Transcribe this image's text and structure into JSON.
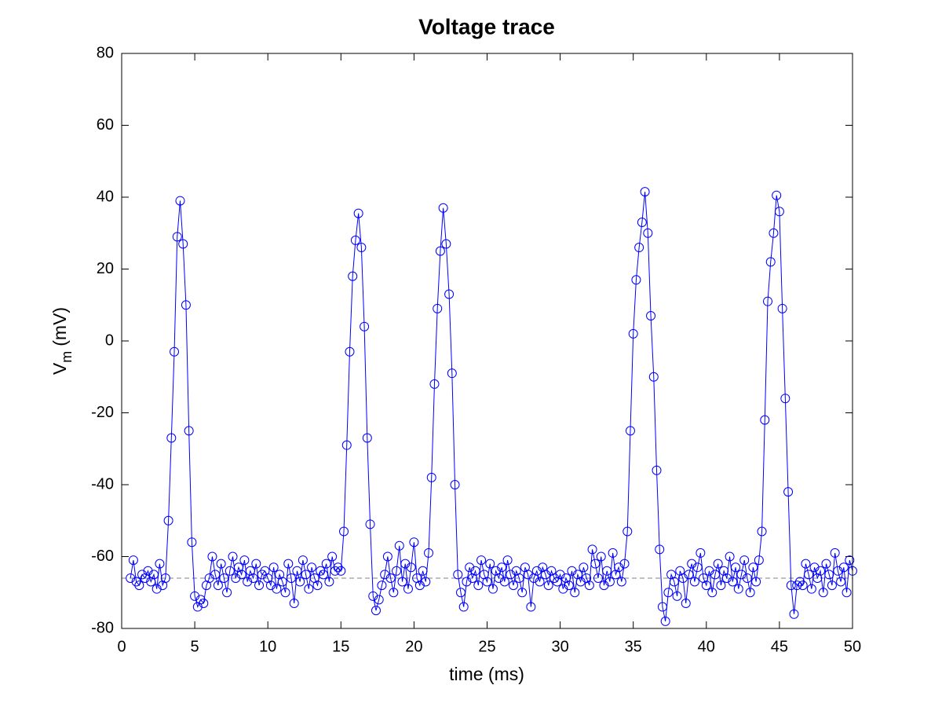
{
  "chart_data": {
    "type": "line",
    "title": "Voltage trace",
    "xlabel": "time (ms)",
    "ylabel": {
      "base": "V",
      "sub": "m",
      "rest": "(mV)"
    },
    "xlim": [
      0,
      50
    ],
    "xticks": [
      0,
      5,
      10,
      15,
      20,
      25,
      30,
      35,
      40,
      45,
      50
    ],
    "ylim": [
      -80,
      80
    ],
    "yticks": [
      -80,
      -60,
      -40,
      -20,
      0,
      20,
      40,
      60,
      80
    ],
    "grid": false,
    "marker": "circle",
    "reference_line": {
      "y": -66,
      "color": "#808080"
    },
    "x": [
      0.6,
      0.8,
      1,
      1.2,
      1.4,
      1.6,
      1.8,
      2,
      2.2,
      2.4,
      2.6,
      2.8,
      3,
      3.2,
      3.4,
      3.6,
      3.8,
      4,
      4.2,
      4.4,
      4.6,
      4.8,
      5,
      5.2,
      5.4,
      5.6,
      5.8,
      6,
      6.2,
      6.4,
      6.6,
      6.8,
      7,
      7.2,
      7.4,
      7.6,
      7.8,
      8,
      8.2,
      8.4,
      8.6,
      8.8,
      9,
      9.2,
      9.4,
      9.6,
      9.8,
      10,
      10.2,
      10.4,
      10.6,
      10.8,
      11,
      11.2,
      11.4,
      11.6,
      11.8,
      12,
      12.2,
      12.4,
      12.6,
      12.8,
      13,
      13.2,
      13.4,
      13.6,
      13.8,
      14,
      14.2,
      14.4,
      14.6,
      14.8,
      15,
      15.2,
      15.4,
      15.6,
      15.8,
      16,
      16.2,
      16.4,
      16.6,
      16.8,
      17,
      17.2,
      17.4,
      17.6,
      17.8,
      18,
      18.2,
      18.4,
      18.6,
      18.8,
      19,
      19.2,
      19.4,
      19.6,
      19.8,
      20,
      20.2,
      20.4,
      20.6,
      20.8,
      21,
      21.2,
      21.4,
      21.6,
      21.8,
      22,
      22.2,
      22.4,
      22.6,
      22.8,
      23,
      23.2,
      23.4,
      23.6,
      23.8,
      24,
      24.2,
      24.4,
      24.6,
      24.8,
      25,
      25.2,
      25.4,
      25.6,
      25.8,
      26,
      26.2,
      26.4,
      26.6,
      26.8,
      27,
      27.2,
      27.4,
      27.6,
      27.8,
      28,
      28.2,
      28.4,
      28.6,
      28.8,
      29,
      29.2,
      29.4,
      29.6,
      29.8,
      30,
      30.2,
      30.4,
      30.6,
      30.8,
      31,
      31.2,
      31.4,
      31.6,
      31.8,
      32,
      32.2,
      32.4,
      32.6,
      32.8,
      33,
      33.2,
      33.4,
      33.6,
      33.8,
      34,
      34.2,
      34.4,
      34.6,
      34.8,
      35,
      35.2,
      35.4,
      35.6,
      35.8,
      36,
      36.2,
      36.4,
      36.6,
      36.8,
      37,
      37.2,
      37.4,
      37.6,
      37.8,
      38,
      38.2,
      38.4,
      38.6,
      38.8,
      39,
      39.2,
      39.4,
      39.6,
      39.8,
      40,
      40.2,
      40.4,
      40.6,
      40.8,
      41,
      41.2,
      41.4,
      41.6,
      41.8,
      42,
      42.2,
      42.4,
      42.6,
      42.8,
      43,
      43.2,
      43.4,
      43.6,
      43.8,
      44,
      44.2,
      44.4,
      44.6,
      44.8,
      45,
      45.2,
      45.4,
      45.6,
      45.8,
      46,
      46.2,
      46.4,
      46.6,
      46.8,
      47,
      47.2,
      47.4,
      47.6,
      47.8,
      48,
      48.2,
      48.4,
      48.6,
      48.8,
      49,
      49.2,
      49.4,
      49.6,
      49.8,
      50
    ],
    "series": [
      {
        "color": "#0000ff",
        "values": [
          -66,
          -61,
          -67,
          -68,
          -65,
          -66,
          -64,
          -67,
          -65,
          -69,
          -62,
          -68,
          -66,
          -50,
          -27,
          -3,
          29,
          39,
          27,
          10,
          -25,
          -56,
          -71,
          -74,
          -72,
          -73,
          -68,
          -66,
          -60,
          -65,
          -68,
          -62,
          -66,
          -70,
          -64,
          -60,
          -66,
          -63,
          -65,
          -61,
          -67,
          -64,
          -66,
          -62,
          -68,
          -65,
          -64,
          -66,
          -68,
          -63,
          -69,
          -65,
          -67,
          -70,
          -62,
          -66,
          -73,
          -64,
          -67,
          -61,
          -65,
          -69,
          -63,
          -66,
          -68,
          -64,
          -65,
          -62,
          -67,
          -60,
          -64,
          -63,
          -64,
          -53,
          -29,
          -3,
          18,
          28,
          35.5,
          26,
          4,
          -27,
          -51,
          -71,
          -75,
          -72,
          -68,
          -65,
          -60,
          -66,
          -70,
          -64,
          -57,
          -67,
          -62,
          -69,
          -63,
          -56,
          -66,
          -68,
          -64,
          -67,
          -59,
          -38,
          -12,
          9,
          25,
          37,
          27,
          13,
          -9,
          -40,
          -65,
          -70,
          -74,
          -67,
          -63,
          -66,
          -64,
          -68,
          -61,
          -65,
          -67,
          -62,
          -69,
          -64,
          -66,
          -63,
          -67,
          -61,
          -65,
          -68,
          -64,
          -66,
          -70,
          -63,
          -65,
          -74,
          -66,
          -64,
          -67,
          -63,
          -65,
          -68,
          -64,
          -66,
          -67,
          -65,
          -69,
          -66,
          -68,
          -64,
          -70,
          -65,
          -67,
          -63,
          -66,
          -68,
          -58,
          -62,
          -66,
          -60,
          -68,
          -64,
          -67,
          -59,
          -65,
          -63,
          -67,
          -62,
          -53,
          -25,
          2,
          17,
          26,
          33,
          41.5,
          30,
          7,
          -10,
          -36,
          -58,
          -74,
          -78,
          -70,
          -65,
          -67,
          -71,
          -64,
          -66,
          -73,
          -65,
          -62,
          -67,
          -63,
          -59,
          -66,
          -68,
          -64,
          -70,
          -65,
          -62,
          -68,
          -64,
          -66,
          -60,
          -67,
          -63,
          -69,
          -65,
          -61,
          -66,
          -70,
          -63,
          -67,
          -61,
          -53,
          -22,
          11,
          22,
          30,
          40.5,
          36,
          9,
          -16,
          -42,
          -68,
          -76,
          -68,
          -67,
          -68,
          -62,
          -65,
          -69,
          -63,
          -66,
          -64,
          -70,
          -62,
          -65,
          -68,
          -59,
          -64,
          -67,
          -63,
          -70,
          -61,
          -64
        ]
      }
    ]
  }
}
